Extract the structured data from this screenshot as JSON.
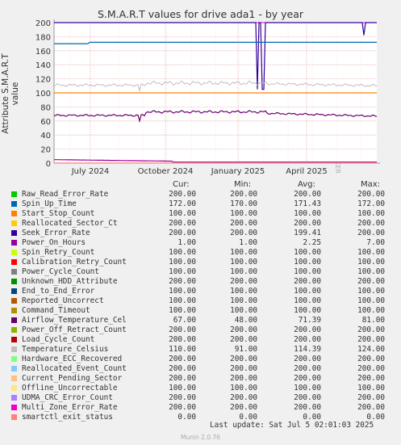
{
  "chart_data": {
    "type": "line",
    "title": "S.M.A.R.T values for drive ada1 - by year",
    "ylabel": "Attribute S.M.A.R.T value",
    "ylim": [
      0,
      200
    ],
    "y_ticks": [
      "0",
      "20",
      "40",
      "60",
      "80",
      "100",
      "120",
      "140",
      "160",
      "180",
      "200"
    ],
    "x_ticks": [
      "July 2024",
      "October 2024",
      "January 2025",
      "April 2025"
    ],
    "grid": true,
    "series": [
      {
        "name": "Raw_Read_Error_Rate",
        "color": "#00cc00",
        "cur": "200.00",
        "min": "200.00",
        "avg": "200.00",
        "max": "200.00"
      },
      {
        "name": "Spin_Up_Time",
        "color": "#0066b3",
        "cur": "172.00",
        "min": "170.00",
        "avg": "171.43",
        "max": "172.00"
      },
      {
        "name": "Start_Stop_Count",
        "color": "#ff8000",
        "cur": "100.00",
        "min": "100.00",
        "avg": "100.00",
        "max": "100.00"
      },
      {
        "name": "Reallocated_Sector_Ct",
        "color": "#ffcc00",
        "cur": "200.00",
        "min": "200.00",
        "avg": "200.00",
        "max": "200.00"
      },
      {
        "name": "Seek_Error_Rate",
        "color": "#330099",
        "cur": "200.00",
        "min": "200.00",
        "avg": "199.41",
        "max": "200.00"
      },
      {
        "name": "Power_On_Hours",
        "color": "#990099",
        "cur": "1.00",
        "min": "1.00",
        "avg": "2.25",
        "max": "7.00"
      },
      {
        "name": "Spin_Retry_Count",
        "color": "#ccff00",
        "cur": "100.00",
        "min": "100.00",
        "avg": "100.00",
        "max": "100.00"
      },
      {
        "name": "Calibration_Retry_Count",
        "color": "#ff0000",
        "cur": "100.00",
        "min": "100.00",
        "avg": "100.00",
        "max": "100.00"
      },
      {
        "name": "Power_Cycle_Count",
        "color": "#808080",
        "cur": "100.00",
        "min": "100.00",
        "avg": "100.00",
        "max": "100.00"
      },
      {
        "name": "Unknown_HDD_Attribute",
        "color": "#008f00",
        "cur": "200.00",
        "min": "200.00",
        "avg": "200.00",
        "max": "200.00"
      },
      {
        "name": "End_to_End_Error",
        "color": "#00487d",
        "cur": "100.00",
        "min": "100.00",
        "avg": "100.00",
        "max": "100.00"
      },
      {
        "name": "Reported_Uncorrect",
        "color": "#b35a00",
        "cur": "100.00",
        "min": "100.00",
        "avg": "100.00",
        "max": "100.00"
      },
      {
        "name": "Command_Timeout",
        "color": "#b38f00",
        "cur": "100.00",
        "min": "100.00",
        "avg": "100.00",
        "max": "100.00"
      },
      {
        "name": "Airflow_Temperature_Cel",
        "color": "#6b006b",
        "cur": "67.00",
        "min": "48.00",
        "avg": "71.39",
        "max": "81.00"
      },
      {
        "name": "Power_Off_Retract_Count",
        "color": "#8fb300",
        "cur": "200.00",
        "min": "200.00",
        "avg": "200.00",
        "max": "200.00"
      },
      {
        "name": "Load_Cycle_Count",
        "color": "#b30000",
        "cur": "200.00",
        "min": "200.00",
        "avg": "200.00",
        "max": "200.00"
      },
      {
        "name": "Temperature_Celsius",
        "color": "#bebebe",
        "cur": "110.00",
        "min": "91.00",
        "avg": "114.39",
        "max": "124.00"
      },
      {
        "name": "Hardware_ECC_Recovered",
        "color": "#80ff80",
        "cur": "200.00",
        "min": "200.00",
        "avg": "200.00",
        "max": "200.00"
      },
      {
        "name": "Reallocated_Event_Count",
        "color": "#80c9ff",
        "cur": "200.00",
        "min": "200.00",
        "avg": "200.00",
        "max": "200.00"
      },
      {
        "name": "Current_Pending_Sector",
        "color": "#ffc080",
        "cur": "200.00",
        "min": "200.00",
        "avg": "200.00",
        "max": "200.00"
      },
      {
        "name": "Offline_Uncorrectable",
        "color": "#ffe680",
        "cur": "100.00",
        "min": "100.00",
        "avg": "100.00",
        "max": "100.00"
      },
      {
        "name": "UDMA_CRC_Error_Count",
        "color": "#aa80ff",
        "cur": "200.00",
        "min": "200.00",
        "avg": "200.00",
        "max": "200.00"
      },
      {
        "name": "Multi_Zone_Error_Rate",
        "color": "#ee00cc",
        "cur": "200.00",
        "min": "200.00",
        "avg": "200.00",
        "max": "200.00"
      },
      {
        "name": "smartctl_exit_status",
        "color": "#ff8080",
        "cur": "0.00",
        "min": "0.00",
        "avg": "0.00",
        "max": "0.00"
      }
    ]
  },
  "legend_headers": {
    "cur": "Cur:",
    "min": "Min:",
    "avg": "Avg:",
    "max": "Max:"
  },
  "footer": {
    "last_update": "Last update:  Sat Jul  5 02:01:03 2025",
    "munin": "Munin 2.0.76",
    "rrdtool": "RRDTOOL / TOBI OETIKER"
  }
}
